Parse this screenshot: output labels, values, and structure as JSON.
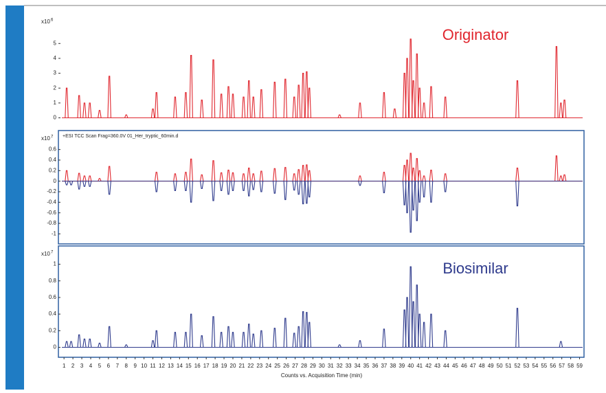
{
  "chart_data": [
    {
      "type": "peaks",
      "annotation": "Originator",
      "y_scale_label": "x10",
      "y_scale_exponent": "6",
      "xlim": [
        0.6,
        59.5
      ],
      "ylim": [
        -0.3,
        7
      ],
      "yticks": [
        0,
        1,
        2,
        3,
        4,
        5
      ],
      "series": [
        {
          "color": "#e0262e",
          "x": [
            1.3,
            2.7,
            3.3,
            3.9,
            5.0,
            6.1,
            8.0,
            11.0,
            11.4,
            13.5,
            14.7,
            15.3,
            16.5,
            17.8,
            18.7,
            19.5,
            20.0,
            21.2,
            21.8,
            22.3,
            23.2,
            24.7,
            25.9,
            26.9,
            27.4,
            27.9,
            28.3,
            28.6,
            32.0,
            34.3,
            37.0,
            38.2,
            39.3,
            39.6,
            40.0,
            40.3,
            40.7,
            41.0,
            41.5,
            42.3,
            43.9,
            52.0,
            56.4,
            56.9,
            57.3
          ],
          "values": [
            2.0,
            1.5,
            1.0,
            1.0,
            0.5,
            2.8,
            0.2,
            0.6,
            1.7,
            1.4,
            1.7,
            4.2,
            1.2,
            3.9,
            1.6,
            2.1,
            1.6,
            1.4,
            2.5,
            1.4,
            1.9,
            2.4,
            2.6,
            1.4,
            2.2,
            3.0,
            3.1,
            2.0,
            0.2,
            1.0,
            1.7,
            0.6,
            3.0,
            4.0,
            5.3,
            2.5,
            4.3,
            2.0,
            1.0,
            2.1,
            1.4,
            2.5,
            4.8,
            1.0,
            1.2
          ]
        }
      ]
    },
    {
      "type": "peaks",
      "annotation": "+ESI TCC Scan Frag=360.0V 01_Her_tryptic_60min.d",
      "y_scale_label": "x10",
      "y_scale_exponent": "7",
      "xlim": [
        0.6,
        59.5
      ],
      "ylim": [
        -1.19,
        0.96
      ],
      "yticks": [
        0.6,
        0.4,
        0.2,
        0,
        -0.2,
        -0.4,
        -0.6,
        -0.8,
        -1
      ],
      "series": [
        {
          "color": "#e0262e",
          "x": [
            1.3,
            2.7,
            3.3,
            3.9,
            5.0,
            6.1,
            11.4,
            13.5,
            14.7,
            15.3,
            16.5,
            17.8,
            18.7,
            19.5,
            20.0,
            21.2,
            21.8,
            22.3,
            23.2,
            24.7,
            25.9,
            26.9,
            27.4,
            27.9,
            28.3,
            28.6,
            34.3,
            37.0,
            39.3,
            39.6,
            40.0,
            40.3,
            40.7,
            41.0,
            41.5,
            42.3,
            43.9,
            52.0,
            56.4,
            56.9,
            57.3
          ],
          "values": [
            0.2,
            0.15,
            0.1,
            0.1,
            0.05,
            0.28,
            0.17,
            0.14,
            0.17,
            0.42,
            0.12,
            0.39,
            0.16,
            0.21,
            0.16,
            0.14,
            0.25,
            0.14,
            0.19,
            0.24,
            0.26,
            0.14,
            0.22,
            0.3,
            0.31,
            0.2,
            0.1,
            0.17,
            0.3,
            0.4,
            0.53,
            0.25,
            0.43,
            0.2,
            0.1,
            0.21,
            0.14,
            0.25,
            0.48,
            0.1,
            0.12
          ]
        },
        {
          "color": "#2e3a8c",
          "x": [
            1.3,
            1.8,
            2.7,
            3.3,
            3.9,
            6.1,
            11.4,
            13.5,
            14.7,
            15.3,
            16.5,
            17.8,
            18.7,
            19.5,
            20.0,
            21.2,
            21.8,
            22.3,
            23.2,
            24.7,
            25.9,
            26.9,
            27.4,
            27.9,
            28.3,
            28.6,
            34.3,
            37.0,
            39.3,
            39.6,
            40.0,
            40.3,
            40.7,
            41.0,
            41.5,
            42.3,
            43.9,
            52.0
          ],
          "values": [
            -0.07,
            -0.07,
            -0.15,
            -0.1,
            -0.1,
            -0.25,
            -0.2,
            -0.18,
            -0.18,
            -0.4,
            -0.14,
            -0.37,
            -0.18,
            -0.25,
            -0.18,
            -0.18,
            -0.28,
            -0.16,
            -0.2,
            -0.23,
            -0.35,
            -0.17,
            -0.25,
            -0.43,
            -0.42,
            -0.3,
            -0.08,
            -0.22,
            -0.45,
            -0.6,
            -0.97,
            -0.55,
            -0.75,
            -0.4,
            -0.3,
            -0.4,
            -0.2,
            -0.47
          ]
        }
      ]
    },
    {
      "type": "peaks",
      "annotation": "Biosimilar",
      "y_scale_label": "x10",
      "y_scale_exponent": "7",
      "xlabel": "Counts vs. Acquisition Time (min)",
      "xlim": [
        0.6,
        59.5
      ],
      "ylim": [
        -0.12,
        1.22
      ],
      "yticks": [
        0,
        0.2,
        0.4,
        0.6,
        0.8,
        1
      ],
      "xticks": [
        1,
        2,
        3,
        4,
        5,
        6,
        7,
        8,
        9,
        10,
        11,
        12,
        13,
        14,
        15,
        16,
        17,
        18,
        19,
        20,
        21,
        22,
        23,
        24,
        25,
        26,
        27,
        28,
        29,
        30,
        31,
        32,
        33,
        34,
        35,
        36,
        37,
        38,
        39,
        40,
        41,
        42,
        43,
        44,
        45,
        46,
        47,
        48,
        49,
        50,
        51,
        52,
        53,
        54,
        55,
        56,
        57,
        58,
        59
      ],
      "series": [
        {
          "color": "#2e3a8c",
          "x": [
            1.3,
            1.8,
            2.7,
            3.3,
            3.9,
            5.0,
            6.1,
            8.0,
            11.0,
            11.4,
            13.5,
            14.7,
            15.3,
            16.5,
            17.8,
            18.7,
            19.5,
            20.0,
            21.2,
            21.8,
            22.3,
            23.2,
            24.7,
            25.9,
            26.9,
            27.4,
            27.9,
            28.3,
            28.6,
            32.0,
            34.3,
            37.0,
            39.3,
            39.6,
            40.0,
            40.3,
            40.7,
            41.0,
            41.5,
            42.3,
            43.9,
            52.0,
            56.9
          ],
          "values": [
            0.07,
            0.07,
            0.15,
            0.1,
            0.1,
            0.05,
            0.25,
            0.03,
            0.08,
            0.2,
            0.18,
            0.18,
            0.4,
            0.14,
            0.37,
            0.18,
            0.25,
            0.18,
            0.18,
            0.28,
            0.16,
            0.2,
            0.23,
            0.35,
            0.17,
            0.25,
            0.43,
            0.42,
            0.3,
            0.03,
            0.08,
            0.22,
            0.45,
            0.6,
            0.97,
            0.55,
            0.75,
            0.4,
            0.3,
            0.4,
            0.2,
            0.47,
            0.07
          ]
        }
      ]
    }
  ]
}
